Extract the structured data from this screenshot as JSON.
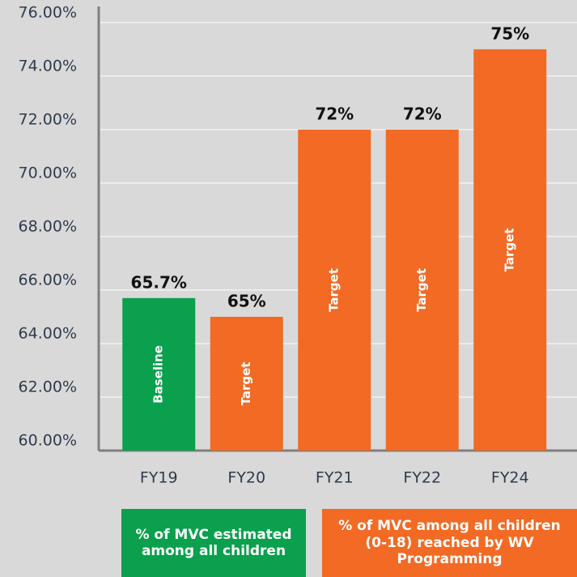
{
  "chart_data": {
    "type": "bar",
    "categories": [
      "FY19",
      "FY20",
      "FY21",
      "FY22",
      "FY24"
    ],
    "values": [
      65.7,
      65,
      72,
      72,
      75
    ],
    "value_labels": [
      "65.7%",
      "65%",
      "72%",
      "72%",
      "75%"
    ],
    "bar_labels": [
      "Baseline",
      "Target",
      "Target",
      "Target",
      "Target"
    ],
    "colors": [
      "#0aa04d",
      "#f26a24",
      "#f26a24",
      "#f26a24",
      "#f26a24"
    ],
    "ylim": [
      60,
      76.6
    ],
    "yticks": [
      {
        "value": 60,
        "label": "60.00%"
      },
      {
        "value": 62,
        "label": "62.00%"
      },
      {
        "value": 64,
        "label": "64.00%"
      },
      {
        "value": 66,
        "label": "66.00%"
      },
      {
        "value": 68,
        "label": "68.00%"
      },
      {
        "value": 70,
        "label": "70.00%"
      },
      {
        "value": 72,
        "label": "72.00%"
      },
      {
        "value": 74,
        "label": "74.00%"
      },
      {
        "value": 76,
        "label": "76.00%"
      }
    ],
    "grid": true,
    "legend": [
      {
        "label": "% of MVC estimated among all children",
        "color": "#0aa04d"
      },
      {
        "label": "% of MVC among all children (0-18) reached by WV Programming",
        "color": "#f26a24"
      }
    ]
  }
}
